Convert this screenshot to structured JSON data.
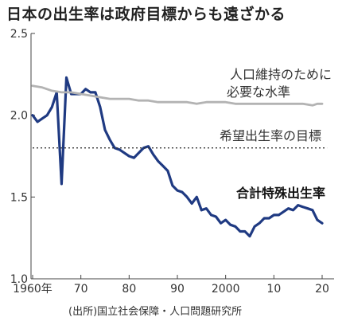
{
  "chart_data": {
    "type": "line",
    "title": "日本の出生率は政府目標からも遠ざかる",
    "source": "(出所)国立社会保障・人口問題研究所",
    "xlim": [
      1960,
      2021
    ],
    "ylim": [
      1.0,
      2.5
    ],
    "x_ticks": [
      {
        "value": 1960,
        "label": "1960年"
      },
      {
        "value": 1970,
        "label": "70"
      },
      {
        "value": 1980,
        "label": "80"
      },
      {
        "value": 1990,
        "label": "90"
      },
      {
        "value": 2000,
        "label": "2000"
      },
      {
        "value": 2010,
        "label": "10"
      },
      {
        "value": 2020,
        "label": "20"
      }
    ],
    "y_ticks": [
      {
        "value": 2.5,
        "label": "2.5"
      },
      {
        "value": 2.0,
        "label": "2.0"
      },
      {
        "value": 1.5,
        "label": "1.5"
      },
      {
        "value": 1.0,
        "label": "1.0"
      }
    ],
    "series": [
      {
        "name": "合計特殊出生率",
        "color": "#1f3a82",
        "style": "solid-thick",
        "x": [
          1960,
          1961,
          1962,
          1963,
          1964,
          1965,
          1966,
          1967,
          1968,
          1969,
          1970,
          1971,
          1972,
          1973,
          1974,
          1975,
          1976,
          1977,
          1978,
          1979,
          1980,
          1981,
          1982,
          1983,
          1984,
          1985,
          1986,
          1987,
          1988,
          1989,
          1990,
          1991,
          1992,
          1993,
          1994,
          1995,
          1996,
          1997,
          1998,
          1999,
          2000,
          2001,
          2002,
          2003,
          2004,
          2005,
          2006,
          2007,
          2008,
          2009,
          2010,
          2011,
          2012,
          2013,
          2014,
          2015,
          2016,
          2017,
          2018,
          2019,
          2020
        ],
        "values": [
          2.0,
          1.96,
          1.98,
          2.0,
          2.05,
          2.14,
          1.58,
          2.23,
          2.13,
          2.13,
          2.13,
          2.16,
          2.14,
          2.14,
          2.05,
          1.91,
          1.85,
          1.8,
          1.79,
          1.77,
          1.75,
          1.74,
          1.77,
          1.8,
          1.81,
          1.76,
          1.72,
          1.69,
          1.66,
          1.57,
          1.54,
          1.53,
          1.5,
          1.46,
          1.5,
          1.42,
          1.43,
          1.39,
          1.38,
          1.34,
          1.36,
          1.33,
          1.32,
          1.29,
          1.29,
          1.26,
          1.32,
          1.34,
          1.37,
          1.37,
          1.39,
          1.39,
          1.41,
          1.43,
          1.42,
          1.45,
          1.44,
          1.43,
          1.42,
          1.36,
          1.34
        ]
      },
      {
        "name": "人口維持のために必要な水準",
        "color": "#b3b3b3",
        "style": "solid",
        "x": [
          1960,
          1962,
          1964,
          1966,
          1968,
          1970,
          1972,
          1974,
          1976,
          1978,
          1980,
          1982,
          1984,
          1986,
          1988,
          1990,
          1992,
          1994,
          1996,
          1998,
          2000,
          2002,
          2004,
          2006,
          2008,
          2010,
          2012,
          2014,
          2016,
          2018,
          2019,
          2020
        ],
        "values": [
          2.18,
          2.17,
          2.15,
          2.14,
          2.14,
          2.13,
          2.12,
          2.11,
          2.1,
          2.1,
          2.1,
          2.09,
          2.09,
          2.08,
          2.08,
          2.08,
          2.08,
          2.07,
          2.08,
          2.08,
          2.08,
          2.07,
          2.07,
          2.07,
          2.07,
          2.07,
          2.07,
          2.07,
          2.07,
          2.06,
          2.07,
          2.07
        ]
      },
      {
        "name": "希望出生率の目標",
        "color": "#333333",
        "style": "dotted",
        "x": [
          1960,
          2021
        ],
        "values": [
          1.8,
          1.8
        ]
      }
    ],
    "annotations": [
      {
        "lines": [
          "人口維持のために",
          "必要な水準"
        ],
        "series": "人口維持のために必要な水準"
      },
      {
        "lines": [
          "希望出生率の目標"
        ],
        "series": "希望出生率の目標"
      },
      {
        "lines": [
          "合計特殊出生率"
        ],
        "series": "合計特殊出生率"
      }
    ],
    "grid": false,
    "legend": "inline-annotations"
  }
}
